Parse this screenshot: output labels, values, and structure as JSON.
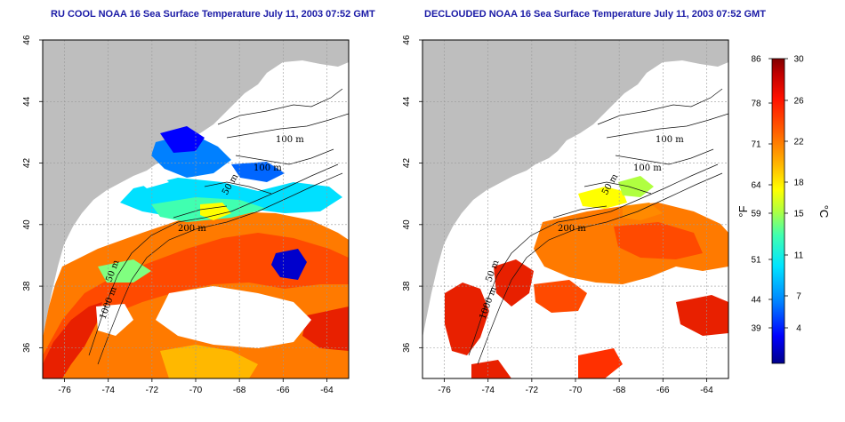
{
  "panels": [
    {
      "title": "RU COOL NOAA 16 Sea Surface Temperature July 11, 2003 07:52 GMT",
      "x_ticks": [
        "-76",
        "-74",
        "-72",
        "-70",
        "-68",
        "-66",
        "-64"
      ],
      "y_ticks": [
        "46",
        "44",
        "42",
        "40",
        "38",
        "36"
      ],
      "contour_labels": [
        "100 m",
        "100 m",
        "200 m",
        "50 m",
        "50 m",
        "1000 m"
      ]
    },
    {
      "title": "DECLOUDED NOAA 16 Sea Surface Temperature July 11, 2003 07:52 GMT",
      "x_ticks": [
        "-76",
        "-74",
        "-72",
        "-70",
        "-68",
        "-66",
        "-64"
      ],
      "y_ticks": [
        "46",
        "44",
        "42",
        "40",
        "38",
        "36"
      ],
      "contour_labels": [
        "100 m",
        "100 m",
        "200 m",
        "50 m",
        "50 m",
        "1000 m"
      ]
    }
  ],
  "colorbar": {
    "fahrenheit_label": "°F",
    "celsius_label": "°C",
    "fahrenheit_ticks": [
      "86",
      "78",
      "71",
      "64",
      "59",
      "51",
      "44",
      "39"
    ],
    "celsius_ticks": [
      "30",
      "26",
      "22",
      "18",
      "15",
      "11",
      "7",
      "4"
    ],
    "colors": [
      "#00008b",
      "#0000ff",
      "#0080ff",
      "#00e5ff",
      "#40ffb0",
      "#b0ff40",
      "#ffff00",
      "#ffb000",
      "#ff6000",
      "#ff1000",
      "#c00000",
      "#800000"
    ]
  },
  "colors": {
    "land": "#bebebe",
    "ocean_clear": "#ffffff",
    "title": "#1a1aa6"
  }
}
